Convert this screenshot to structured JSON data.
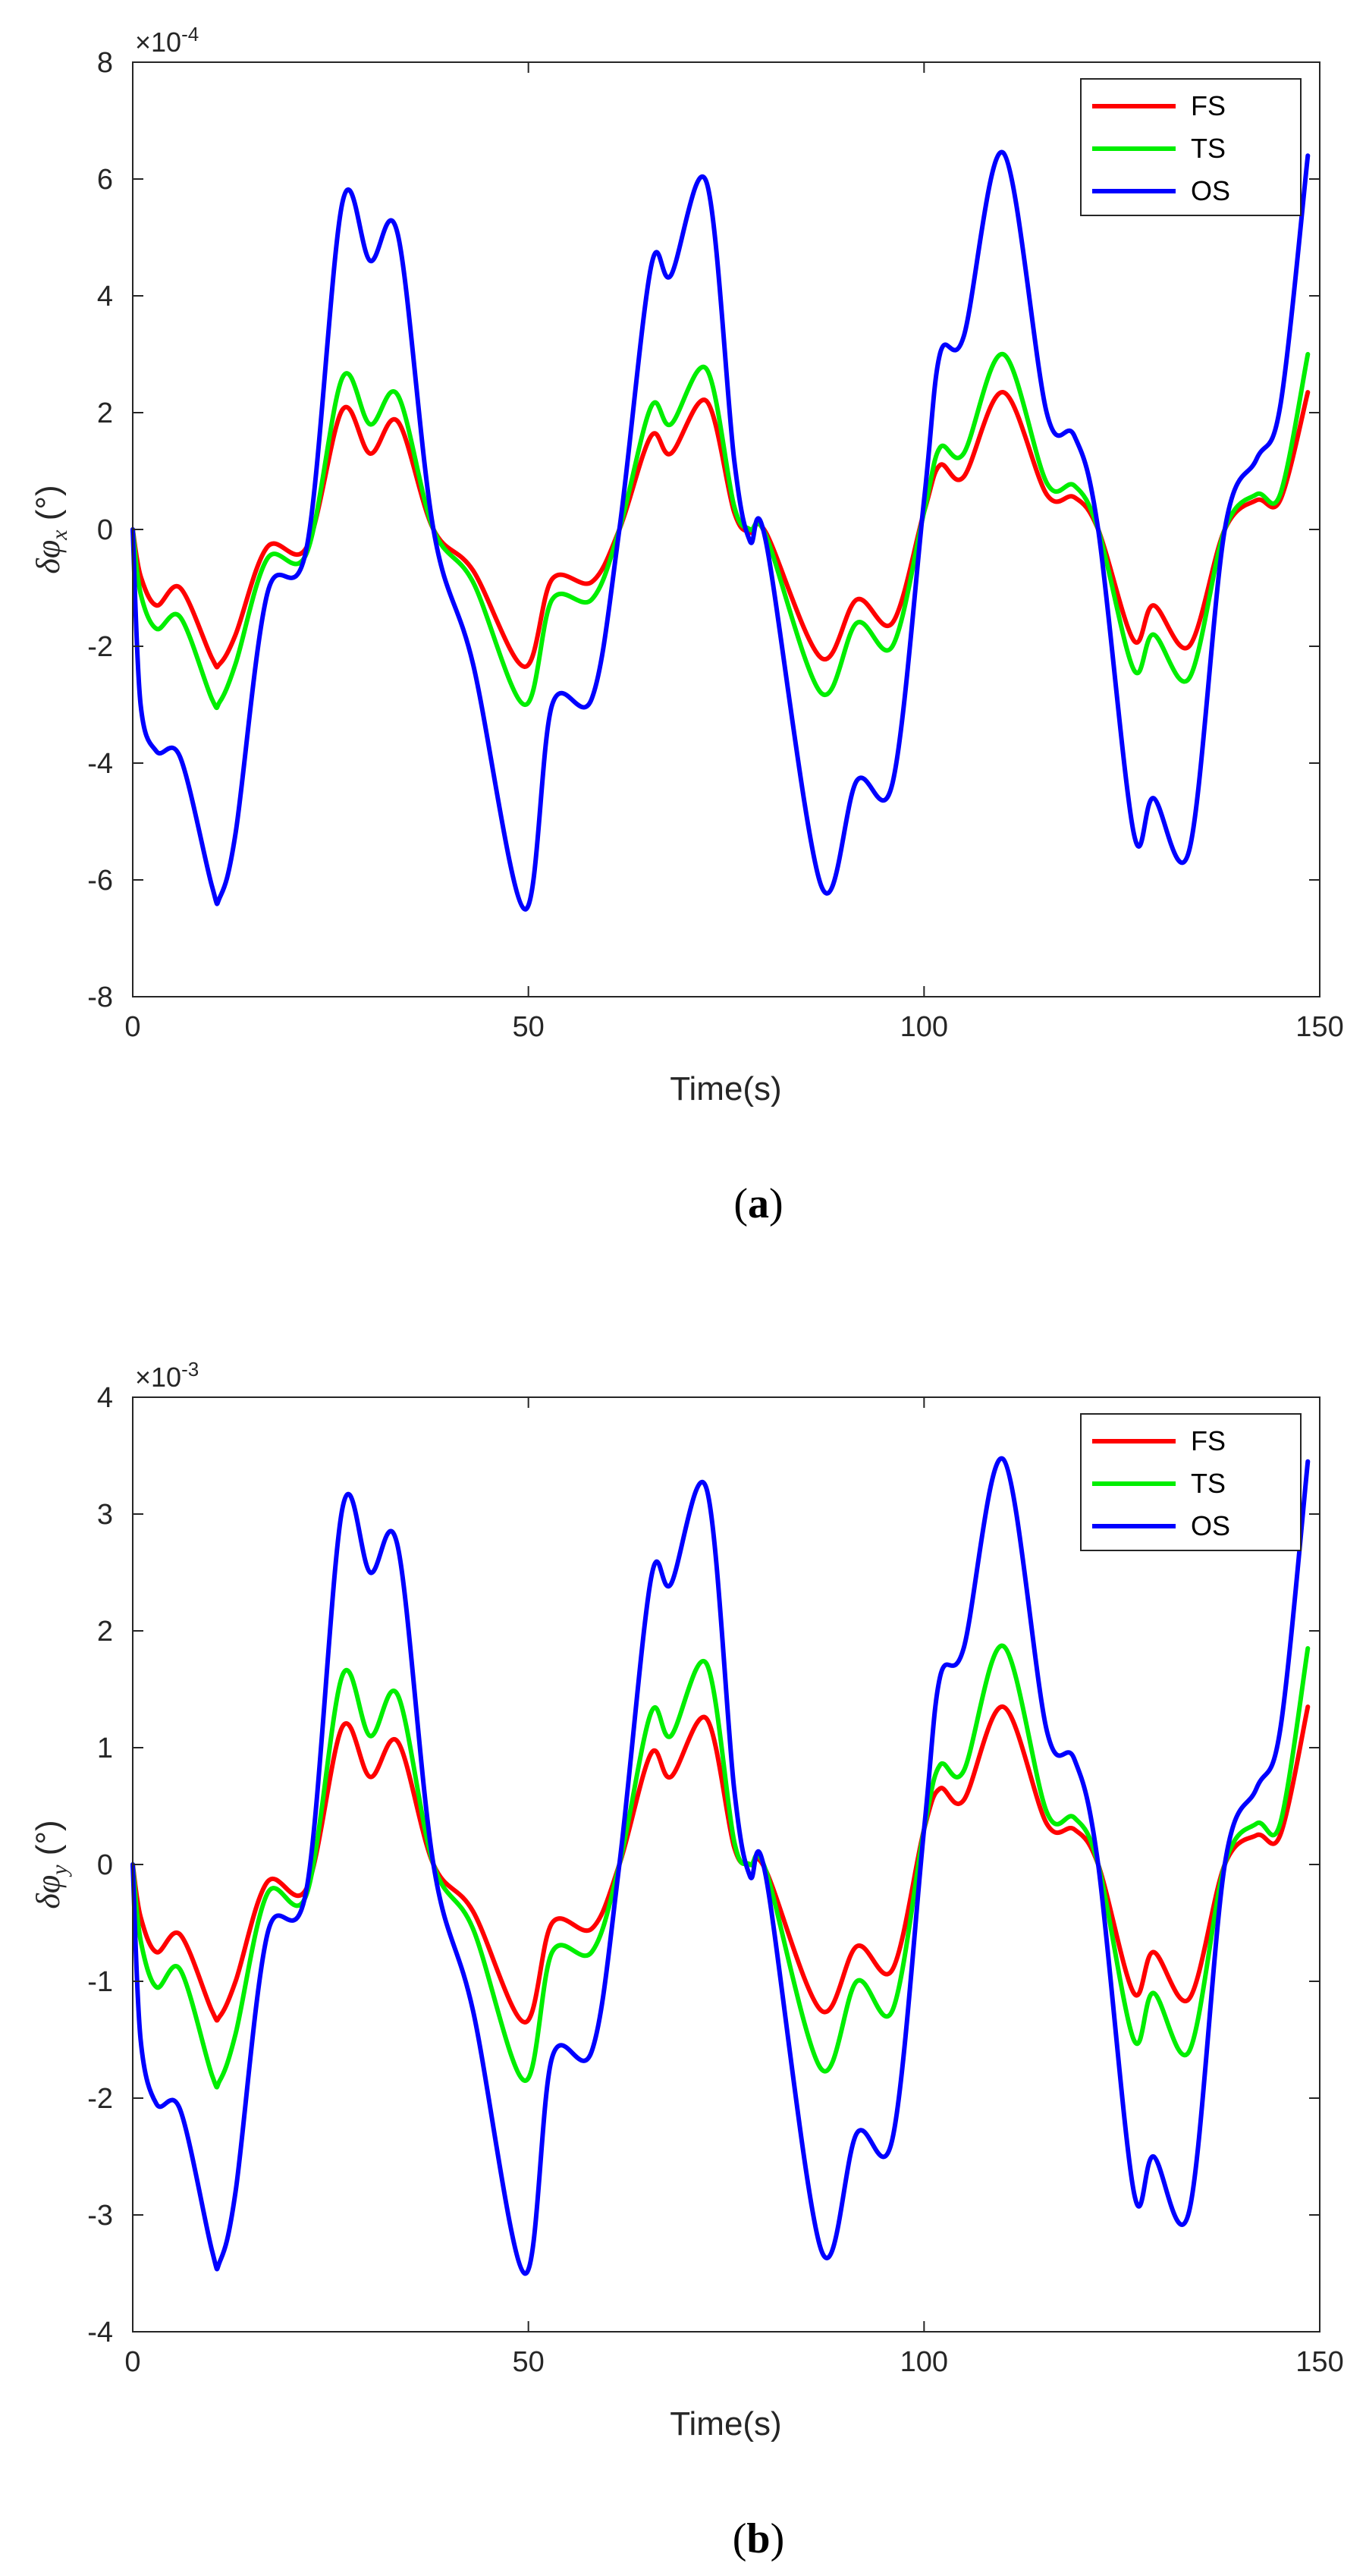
{
  "colors": {
    "FS": "#ff0000",
    "TS": "#00ee00",
    "OS": "#0000ff",
    "axis": "#262626"
  },
  "chart_data": [
    {
      "type": "line",
      "panel": "a",
      "caption": {
        "open": "(",
        "letter": "a",
        "close": ")"
      },
      "xlabel": "Time(s)",
      "ylabel_main": "δφ",
      "ylabel_sub": "x",
      "ylabel_unit": " (°)",
      "exponent": {
        "base": "×10",
        "power": "-4"
      },
      "xlim": [
        0,
        150
      ],
      "ylim": [
        -8,
        8
      ],
      "xticks": [
        0,
        50,
        100,
        150
      ],
      "yticks": [
        -8,
        -6,
        -4,
        -2,
        0,
        2,
        4,
        6,
        8
      ],
      "legend": {
        "position": "top-right",
        "entries": [
          "FS",
          "TS",
          "OS"
        ]
      },
      "series": [
        {
          "name": "FS",
          "color": "#ff0000",
          "x": [
            0,
            1,
            3,
            6,
            10,
            11,
            13,
            17,
            22,
            26.5,
            30,
            33.5,
            38,
            43,
            49.5,
            53,
            58,
            61.5,
            65.5,
            68,
            72.5,
            76,
            78,
            80,
            87,
            91.5,
            96,
            100,
            102,
            105,
            110,
            115.5,
            119,
            122,
            126.5,
            129,
            133.5,
            138,
            142,
            145,
            148.5
          ],
          "y": [
            0,
            -0.8,
            -1.3,
            -1.0,
            -2.2,
            -2.3,
            -1.8,
            -0.3,
            -0.3,
            2.05,
            1.3,
            1.85,
            0,
            -0.7,
            -2.35,
            -0.85,
            -0.9,
            0,
            1.6,
            1.3,
            2.2,
            0.3,
            -0.05,
            -0.05,
            -2.2,
            -1.2,
            -1.6,
            0.3,
            1.1,
            0.9,
            2.35,
            0.6,
            0.55,
            0,
            -1.9,
            -1.3,
            -2.0,
            0,
            0.5,
            0.5,
            2.35
          ]
        },
        {
          "name": "TS",
          "color": "#00ee00",
          "x": [
            0,
            1,
            3,
            6,
            10,
            11,
            13,
            17,
            22,
            26.5,
            30,
            33.5,
            38,
            43,
            49.5,
            53,
            58,
            61.5,
            65.5,
            68,
            72.5,
            76,
            78,
            80,
            87,
            91.5,
            96,
            100,
            102,
            105,
            110,
            115.5,
            119,
            122,
            126.5,
            129,
            133.5,
            138,
            142,
            145,
            148.5
          ],
          "y": [
            0,
            -1.1,
            -1.7,
            -1.5,
            -2.9,
            -2.95,
            -2.3,
            -0.5,
            -0.4,
            2.6,
            1.8,
            2.3,
            0,
            -0.9,
            -3.0,
            -1.2,
            -1.2,
            0,
            2.1,
            1.8,
            2.75,
            0.4,
            0,
            -0.1,
            -2.8,
            -1.6,
            -2.0,
            0.3,
            1.4,
            1.3,
            3.0,
            0.8,
            0.75,
            0,
            -2.4,
            -1.8,
            -2.55,
            0,
            0.6,
            0.6,
            3.0
          ]
        },
        {
          "name": "OS",
          "color": "#0000ff",
          "x": [
            0,
            1,
            3,
            6,
            10,
            11,
            13,
            17,
            22,
            26.5,
            30,
            33.5,
            38,
            43,
            49.5,
            53,
            58,
            61.5,
            65.5,
            68,
            72.5,
            76,
            78,
            80,
            87,
            91.5,
            96,
            100,
            102,
            105,
            110,
            115.5,
            119,
            122,
            126.5,
            129,
            133.5,
            138,
            142,
            145,
            148.5
          ],
          "y": [
            0,
            -3.0,
            -3.8,
            -3.9,
            -6.1,
            -6.3,
            -5.2,
            -1.1,
            -0.3,
            5.6,
            4.6,
            5.05,
            0,
            -2.3,
            -6.5,
            -3.0,
            -2.9,
            0,
            4.5,
            4.35,
            5.95,
            1.2,
            -0.2,
            -0.2,
            -6.1,
            -4.3,
            -4.35,
            0.5,
            3.0,
            3.3,
            6.45,
            2.0,
            1.6,
            0,
            -5.2,
            -4.6,
            -5.5,
            0,
            1.2,
            2.1,
            6.4
          ]
        }
      ]
    },
    {
      "type": "line",
      "panel": "b",
      "caption": {
        "open": "(",
        "letter": "b",
        "close": ")"
      },
      "xlabel": "Time(s)",
      "ylabel_main": "δφ",
      "ylabel_sub": "y",
      "ylabel_unit": " (°)",
      "exponent": {
        "base": "×10",
        "power": "-3"
      },
      "xlim": [
        0,
        150
      ],
      "ylim": [
        -4,
        4
      ],
      "xticks": [
        0,
        50,
        100,
        150
      ],
      "yticks": [
        -4,
        -3,
        -2,
        -1,
        0,
        1,
        2,
        3,
        4
      ],
      "legend": {
        "position": "top-right",
        "entries": [
          "FS",
          "TS",
          "OS"
        ]
      },
      "series": [
        {
          "name": "FS",
          "color": "#ff0000",
          "x": [
            0,
            1,
            3,
            6,
            10,
            11,
            13,
            17,
            22,
            26.5,
            30,
            33.5,
            38,
            43,
            49.5,
            53,
            58,
            61.5,
            65.5,
            68,
            72.5,
            76,
            78,
            80,
            87,
            91.5,
            96,
            100,
            102,
            105,
            110,
            115.5,
            119,
            122,
            126.5,
            129,
            133.5,
            138,
            142,
            145,
            148.5
          ],
          "y": [
            0,
            -0.45,
            -0.75,
            -0.6,
            -1.25,
            -1.3,
            -1.0,
            -0.15,
            -0.2,
            1.18,
            0.75,
            1.05,
            0,
            -0.4,
            -1.35,
            -0.5,
            -0.55,
            0,
            0.95,
            0.75,
            1.25,
            0.15,
            0,
            -0.05,
            -1.25,
            -0.7,
            -0.9,
            0.3,
            0.65,
            0.55,
            1.35,
            0.35,
            0.3,
            0,
            -1.1,
            -0.75,
            -1.15,
            0,
            0.25,
            0.25,
            1.35
          ]
        },
        {
          "name": "TS",
          "color": "#00ee00",
          "x": [
            0,
            1,
            3,
            6,
            10,
            11,
            13,
            17,
            22,
            26.5,
            30,
            33.5,
            38,
            43,
            49.5,
            53,
            58,
            61.5,
            65.5,
            68,
            72.5,
            76,
            78,
            80,
            87,
            91.5,
            96,
            100,
            102,
            105,
            110,
            115.5,
            119,
            122,
            126.5,
            129,
            133.5,
            138,
            142,
            145,
            148.5
          ],
          "y": [
            0,
            -0.65,
            -1.05,
            -0.9,
            -1.8,
            -1.85,
            -1.45,
            -0.25,
            -0.25,
            1.62,
            1.1,
            1.45,
            0,
            -0.55,
            -1.85,
            -0.75,
            -0.75,
            0,
            1.3,
            1.1,
            1.72,
            0.2,
            0,
            -0.05,
            -1.75,
            -1.0,
            -1.25,
            0.3,
            0.85,
            0.8,
            1.87,
            0.45,
            0.4,
            0,
            -1.5,
            -1.1,
            -1.6,
            0,
            0.35,
            0.35,
            1.85
          ]
        },
        {
          "name": "OS",
          "color": "#0000ff",
          "x": [
            0,
            1,
            3,
            6,
            10,
            11,
            13,
            17,
            22,
            26.5,
            30,
            33.5,
            38,
            43,
            49.5,
            53,
            58,
            61.5,
            65.5,
            68,
            72.5,
            76,
            78,
            80,
            87,
            91.5,
            96,
            100,
            102,
            105,
            110,
            115.5,
            119,
            122,
            126.5,
            129,
            133.5,
            138,
            142,
            145,
            148.5
          ],
          "y": [
            0,
            -1.5,
            -2.05,
            -2.1,
            -3.3,
            -3.4,
            -2.8,
            -0.6,
            -0.2,
            3.05,
            2.5,
            2.72,
            0,
            -1.25,
            -3.5,
            -1.65,
            -1.6,
            0,
            2.45,
            2.4,
            3.22,
            0.65,
            -0.1,
            -0.1,
            -3.3,
            -2.3,
            -2.35,
            0.3,
            1.6,
            1.85,
            3.47,
            1.15,
            0.9,
            0,
            -2.8,
            -2.5,
            -2.97,
            0,
            0.65,
            1.15,
            3.45
          ]
        }
      ]
    }
  ]
}
